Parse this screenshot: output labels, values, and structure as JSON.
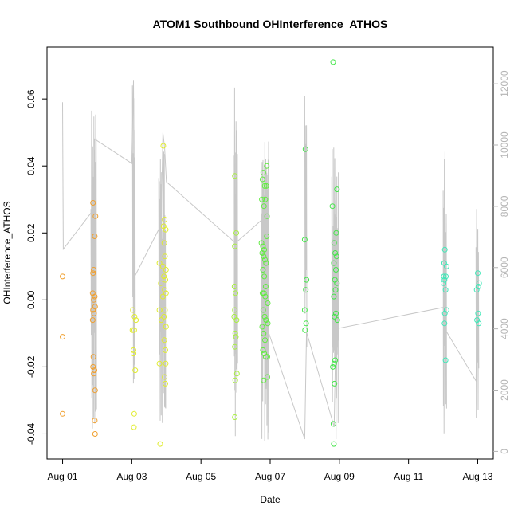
{
  "chart_data": {
    "type": "scatter",
    "title": "ATOM1 Southbound OHInterference_ATHOS",
    "xlabel": "Date",
    "ylabel": "OHInterference_ATHOS",
    "x_ticks": [
      {
        "label": "Aug 01",
        "day": 1
      },
      {
        "label": "Aug 03",
        "day": 3
      },
      {
        "label": "Aug 05",
        "day": 5
      },
      {
        "label": "Aug 07",
        "day": 7
      },
      {
        "label": "Aug 09",
        "day": 9
      },
      {
        "label": "Aug 11",
        "day": 11
      },
      {
        "label": "Aug 13",
        "day": 13
      }
    ],
    "x_range_days": [
      0.55,
      13.45
    ],
    "y_ticks": [
      "-0.04",
      "-0.02",
      "0.00",
      "0.02",
      "0.04",
      "0.06"
    ],
    "y_range": [
      -0.0475,
      0.0755
    ],
    "y2_ticks": [
      "0",
      "2000",
      "4000",
      "6000",
      "8000",
      "10000",
      "12000"
    ],
    "y2_range": [
      -250,
      13200
    ],
    "grid": false,
    "colors": {
      "axis": "#000000",
      "right_axis": "#b4b4b4",
      "line": "#c8c8c8"
    },
    "series": [
      {
        "color": "#f0a030",
        "points": [
          [
            1.0,
            0.007
          ],
          [
            1.0,
            -0.011
          ],
          [
            1.0,
            -0.034
          ],
          [
            1.88,
            0.029
          ],
          [
            1.95,
            0.025
          ],
          [
            1.93,
            0.019
          ],
          [
            1.9,
            0.009
          ],
          [
            1.88,
            0.008
          ],
          [
            1.87,
            0.002
          ],
          [
            1.93,
            0.001
          ],
          [
            1.9,
            0.0
          ],
          [
            1.94,
            -0.002
          ],
          [
            1.88,
            -0.003
          ],
          [
            1.91,
            -0.004
          ],
          [
            1.87,
            -0.006
          ],
          [
            1.89,
            -0.017
          ],
          [
            1.88,
            -0.02
          ],
          [
            1.92,
            -0.021
          ],
          [
            1.9,
            -0.022
          ],
          [
            1.94,
            -0.027
          ],
          [
            1.93,
            -0.036
          ],
          [
            1.94,
            -0.04
          ]
        ]
      },
      {
        "color": "#e0ec30",
        "points": [
          [
            3.03,
            -0.003
          ],
          [
            3.08,
            -0.005
          ],
          [
            3.12,
            -0.006
          ],
          [
            3.02,
            -0.009
          ],
          [
            3.07,
            -0.009
          ],
          [
            3.05,
            -0.015
          ],
          [
            3.05,
            -0.016
          ],
          [
            3.1,
            -0.021
          ],
          [
            3.07,
            -0.034
          ],
          [
            3.06,
            -0.038
          ],
          [
            3.8,
            0.011
          ],
          [
            3.84,
            0.005
          ],
          [
            3.8,
            -0.003
          ],
          [
            3.85,
            -0.006
          ],
          [
            3.8,
            -0.019
          ],
          [
            3.82,
            -0.043
          ],
          [
            3.91,
            0.046
          ],
          [
            3.95,
            0.024
          ],
          [
            3.92,
            0.022
          ],
          [
            3.98,
            0.021
          ],
          [
            3.94,
            0.017
          ],
          [
            3.96,
            0.013
          ],
          [
            3.9,
            0.01
          ],
          [
            3.99,
            0.009
          ],
          [
            3.93,
            0.007
          ],
          [
            3.97,
            0.006
          ],
          [
            3.95,
            0.003
          ],
          [
            3.99,
            0.002
          ],
          [
            3.9,
            0.001
          ],
          [
            3.96,
            -0.003
          ],
          [
            3.93,
            -0.005
          ],
          [
            3.99,
            -0.008
          ],
          [
            3.94,
            -0.012
          ],
          [
            3.97,
            -0.015
          ],
          [
            3.98,
            -0.019
          ],
          [
            3.95,
            -0.023
          ],
          [
            3.97,
            -0.025
          ]
        ]
      },
      {
        "color": "#a8f040",
        "points": [
          [
            5.98,
            0.037
          ],
          [
            6.02,
            0.02
          ],
          [
            5.98,
            0.016
          ],
          [
            5.97,
            0.004
          ],
          [
            6.0,
            0.002
          ],
          [
            5.98,
            -0.003
          ],
          [
            6.03,
            -0.006
          ],
          [
            5.96,
            -0.005
          ],
          [
            5.99,
            -0.01
          ],
          [
            6.01,
            -0.011
          ],
          [
            5.98,
            -0.014
          ],
          [
            6.04,
            -0.022
          ],
          [
            5.99,
            -0.024
          ],
          [
            5.98,
            -0.035
          ]
        ]
      },
      {
        "color": "#60ec40",
        "points": [
          [
            6.8,
            0.038
          ],
          [
            6.78,
            0.036
          ],
          [
            6.84,
            0.034
          ],
          [
            6.76,
            0.03
          ],
          [
            6.82,
            0.028
          ],
          [
            6.9,
            0.04
          ],
          [
            6.89,
            0.034
          ],
          [
            6.86,
            0.03
          ],
          [
            6.75,
            0.017
          ],
          [
            6.79,
            0.016
          ],
          [
            6.83,
            0.015
          ],
          [
            6.77,
            0.014
          ],
          [
            6.81,
            0.013
          ],
          [
            6.85,
            0.012
          ],
          [
            6.88,
            0.011
          ],
          [
            6.79,
            0.009
          ],
          [
            6.83,
            0.007
          ],
          [
            6.87,
            0.004
          ],
          [
            6.78,
            0.002
          ],
          [
            6.82,
            0.002
          ],
          [
            6.86,
            0.001
          ],
          [
            6.8,
            -0.003
          ],
          [
            6.84,
            -0.005
          ],
          [
            6.88,
            -0.006
          ],
          [
            6.77,
            -0.008
          ],
          [
            6.81,
            -0.01
          ],
          [
            6.85,
            -0.012
          ],
          [
            6.79,
            -0.015
          ],
          [
            6.83,
            -0.016
          ],
          [
            6.87,
            -0.017
          ],
          [
            6.81,
            -0.024
          ],
          [
            6.92,
            -0.023
          ],
          [
            6.92,
            -0.017
          ],
          [
            6.91,
            0.025
          ],
          [
            6.9,
            0.019
          ],
          [
            6.93,
            -0.001
          ],
          [
            6.93,
            -0.007
          ]
        ]
      },
      {
        "color": "#44e64a",
        "points": [
          [
            8.02,
            0.045
          ],
          [
            8.0,
            0.018
          ],
          [
            8.05,
            0.006
          ],
          [
            8.03,
            0.003
          ],
          [
            8.0,
            -0.003
          ],
          [
            8.04,
            -0.007
          ],
          [
            8.01,
            -0.009
          ],
          [
            8.82,
            0.071
          ],
          [
            8.8,
            0.028
          ],
          [
            8.85,
            0.017
          ],
          [
            8.93,
            0.033
          ],
          [
            8.91,
            0.02
          ],
          [
            8.88,
            0.014
          ],
          [
            8.84,
            0.011
          ],
          [
            8.92,
            0.013
          ],
          [
            8.9,
            0.009
          ],
          [
            8.87,
            0.006
          ],
          [
            8.93,
            0.005
          ],
          [
            8.89,
            0.003
          ],
          [
            8.84,
            0.001
          ],
          [
            8.9,
            -0.004
          ],
          [
            8.94,
            -0.006
          ],
          [
            8.86,
            -0.005
          ],
          [
            8.81,
            -0.02
          ],
          [
            8.85,
            -0.019
          ],
          [
            8.88,
            -0.018
          ],
          [
            8.86,
            -0.025
          ],
          [
            8.83,
            -0.037
          ],
          [
            8.84,
            -0.043
          ]
        ]
      },
      {
        "color": "#40e8b8",
        "points": [
          [
            12.05,
            0.015
          ],
          [
            12.03,
            0.011
          ],
          [
            12.1,
            0.01
          ],
          [
            12.02,
            0.007
          ],
          [
            12.08,
            0.007
          ],
          [
            12.04,
            0.006
          ],
          [
            12.01,
            0.005
          ],
          [
            12.07,
            0.003
          ],
          [
            12.1,
            -0.003
          ],
          [
            12.05,
            -0.004
          ],
          [
            12.04,
            -0.007
          ],
          [
            12.07,
            -0.018
          ],
          [
            13.0,
            0.008
          ],
          [
            13.02,
            0.004
          ],
          [
            13.04,
            0.005
          ],
          [
            12.97,
            0.003
          ],
          [
            13.01,
            -0.004
          ],
          [
            12.98,
            -0.006
          ],
          [
            13.03,
            -0.007
          ]
        ]
      }
    ],
    "overlay_line": {
      "axis": "right",
      "points": [
        [
          1.0,
          11400
        ],
        [
          1.02,
          6600
        ],
        [
          1.9,
          7900
        ],
        [
          1.92,
          10200
        ],
        [
          3.0,
          9400
        ],
        [
          3.05,
          12100
        ],
        [
          3.08,
          5700
        ],
        [
          3.85,
          7400
        ],
        [
          3.9,
          10400
        ],
        [
          3.95,
          9900
        ],
        [
          4.0,
          8800
        ],
        [
          6.0,
          6800
        ],
        [
          6.9,
          7700
        ],
        [
          6.95,
          3900
        ],
        [
          8.0,
          400
        ],
        [
          8.05,
          3900
        ],
        [
          8.85,
          800
        ],
        [
          8.9,
          4000
        ],
        [
          12.0,
          4700
        ],
        [
          12.05,
          4000
        ],
        [
          12.95,
          2300
        ],
        [
          13.0,
          5500
        ]
      ],
      "bursts": [
        {
          "from": 1.82,
          "to": 1.98,
          "min": 200,
          "max": 11400,
          "n": 20
        },
        {
          "from": 3.02,
          "to": 3.1,
          "min": 2000,
          "max": 12400,
          "n": 10
        },
        {
          "from": 3.78,
          "to": 3.98,
          "min": 800,
          "max": 10100,
          "n": 26
        },
        {
          "from": 5.96,
          "to": 6.06,
          "min": 400,
          "max": 12100,
          "n": 16
        },
        {
          "from": 6.74,
          "to": 6.96,
          "min": 200,
          "max": 10300,
          "n": 34
        },
        {
          "from": 8.0,
          "to": 8.06,
          "min": 3000,
          "max": 11800,
          "n": 8
        },
        {
          "from": 8.78,
          "to": 8.98,
          "min": 300,
          "max": 10000,
          "n": 28
        },
        {
          "from": 12.0,
          "to": 12.1,
          "min": 400,
          "max": 10400,
          "n": 12
        },
        {
          "from": 12.95,
          "to": 13.03,
          "min": 400,
          "max": 9000,
          "n": 10
        }
      ]
    }
  }
}
